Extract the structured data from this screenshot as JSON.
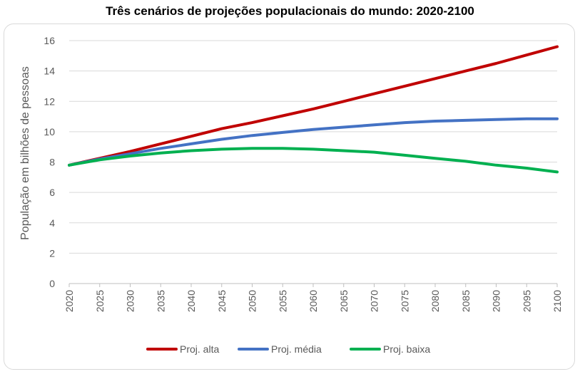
{
  "chart_data": {
    "type": "line",
    "title": "Três cenários de projeções populacionais do mundo: 2020-2100",
    "xlabel": "",
    "ylabel": "População em bilhões de pessoas",
    "xlim": [
      2020,
      2100
    ],
    "ylim": [
      0,
      16
    ],
    "xticks": [
      "2020",
      "2025",
      "2030",
      "2035",
      "2040",
      "2045",
      "2050",
      "2055",
      "2060",
      "2065",
      "2070",
      "2075",
      "2080",
      "2085",
      "2090",
      "2095",
      "2100"
    ],
    "yticks": [
      "0",
      "2",
      "4",
      "6",
      "8",
      "10",
      "12",
      "14",
      "16"
    ],
    "grid": "horizontal",
    "legend": "bottom",
    "series": [
      {
        "name": "Proj. alta",
        "color": "#c00000",
        "points": [
          [
            2020,
            7.8
          ],
          [
            2025,
            8.25
          ],
          [
            2030,
            8.7
          ],
          [
            2035,
            9.2
          ],
          [
            2040,
            9.7
          ],
          [
            2045,
            10.2
          ],
          [
            2050,
            10.6
          ],
          [
            2055,
            11.05
          ],
          [
            2060,
            11.5
          ],
          [
            2065,
            12.0
          ],
          [
            2070,
            12.5
          ],
          [
            2075,
            13.0
          ],
          [
            2080,
            13.5
          ],
          [
            2085,
            14.0
          ],
          [
            2090,
            14.5
          ],
          [
            2095,
            15.05
          ],
          [
            2100,
            15.6
          ]
        ]
      },
      {
        "name": "Proj. média",
        "color": "#4472c4",
        "points": [
          [
            2020,
            7.8
          ],
          [
            2025,
            8.2
          ],
          [
            2030,
            8.55
          ],
          [
            2035,
            8.9
          ],
          [
            2040,
            9.2
          ],
          [
            2045,
            9.5
          ],
          [
            2050,
            9.75
          ],
          [
            2055,
            9.95
          ],
          [
            2060,
            10.15
          ],
          [
            2065,
            10.3
          ],
          [
            2070,
            10.45
          ],
          [
            2075,
            10.6
          ],
          [
            2080,
            10.7
          ],
          [
            2085,
            10.75
          ],
          [
            2090,
            10.8
          ],
          [
            2095,
            10.85
          ],
          [
            2100,
            10.85
          ]
        ]
      },
      {
        "name": "Proj. baixa",
        "color": "#00b050",
        "points": [
          [
            2020,
            7.8
          ],
          [
            2025,
            8.15
          ],
          [
            2030,
            8.4
          ],
          [
            2035,
            8.6
          ],
          [
            2040,
            8.75
          ],
          [
            2045,
            8.85
          ],
          [
            2050,
            8.9
          ],
          [
            2055,
            8.9
          ],
          [
            2060,
            8.85
          ],
          [
            2065,
            8.75
          ],
          [
            2070,
            8.65
          ],
          [
            2075,
            8.45
          ],
          [
            2080,
            8.25
          ],
          [
            2085,
            8.05
          ],
          [
            2090,
            7.8
          ],
          [
            2095,
            7.6
          ],
          [
            2100,
            7.35
          ]
        ]
      }
    ]
  }
}
